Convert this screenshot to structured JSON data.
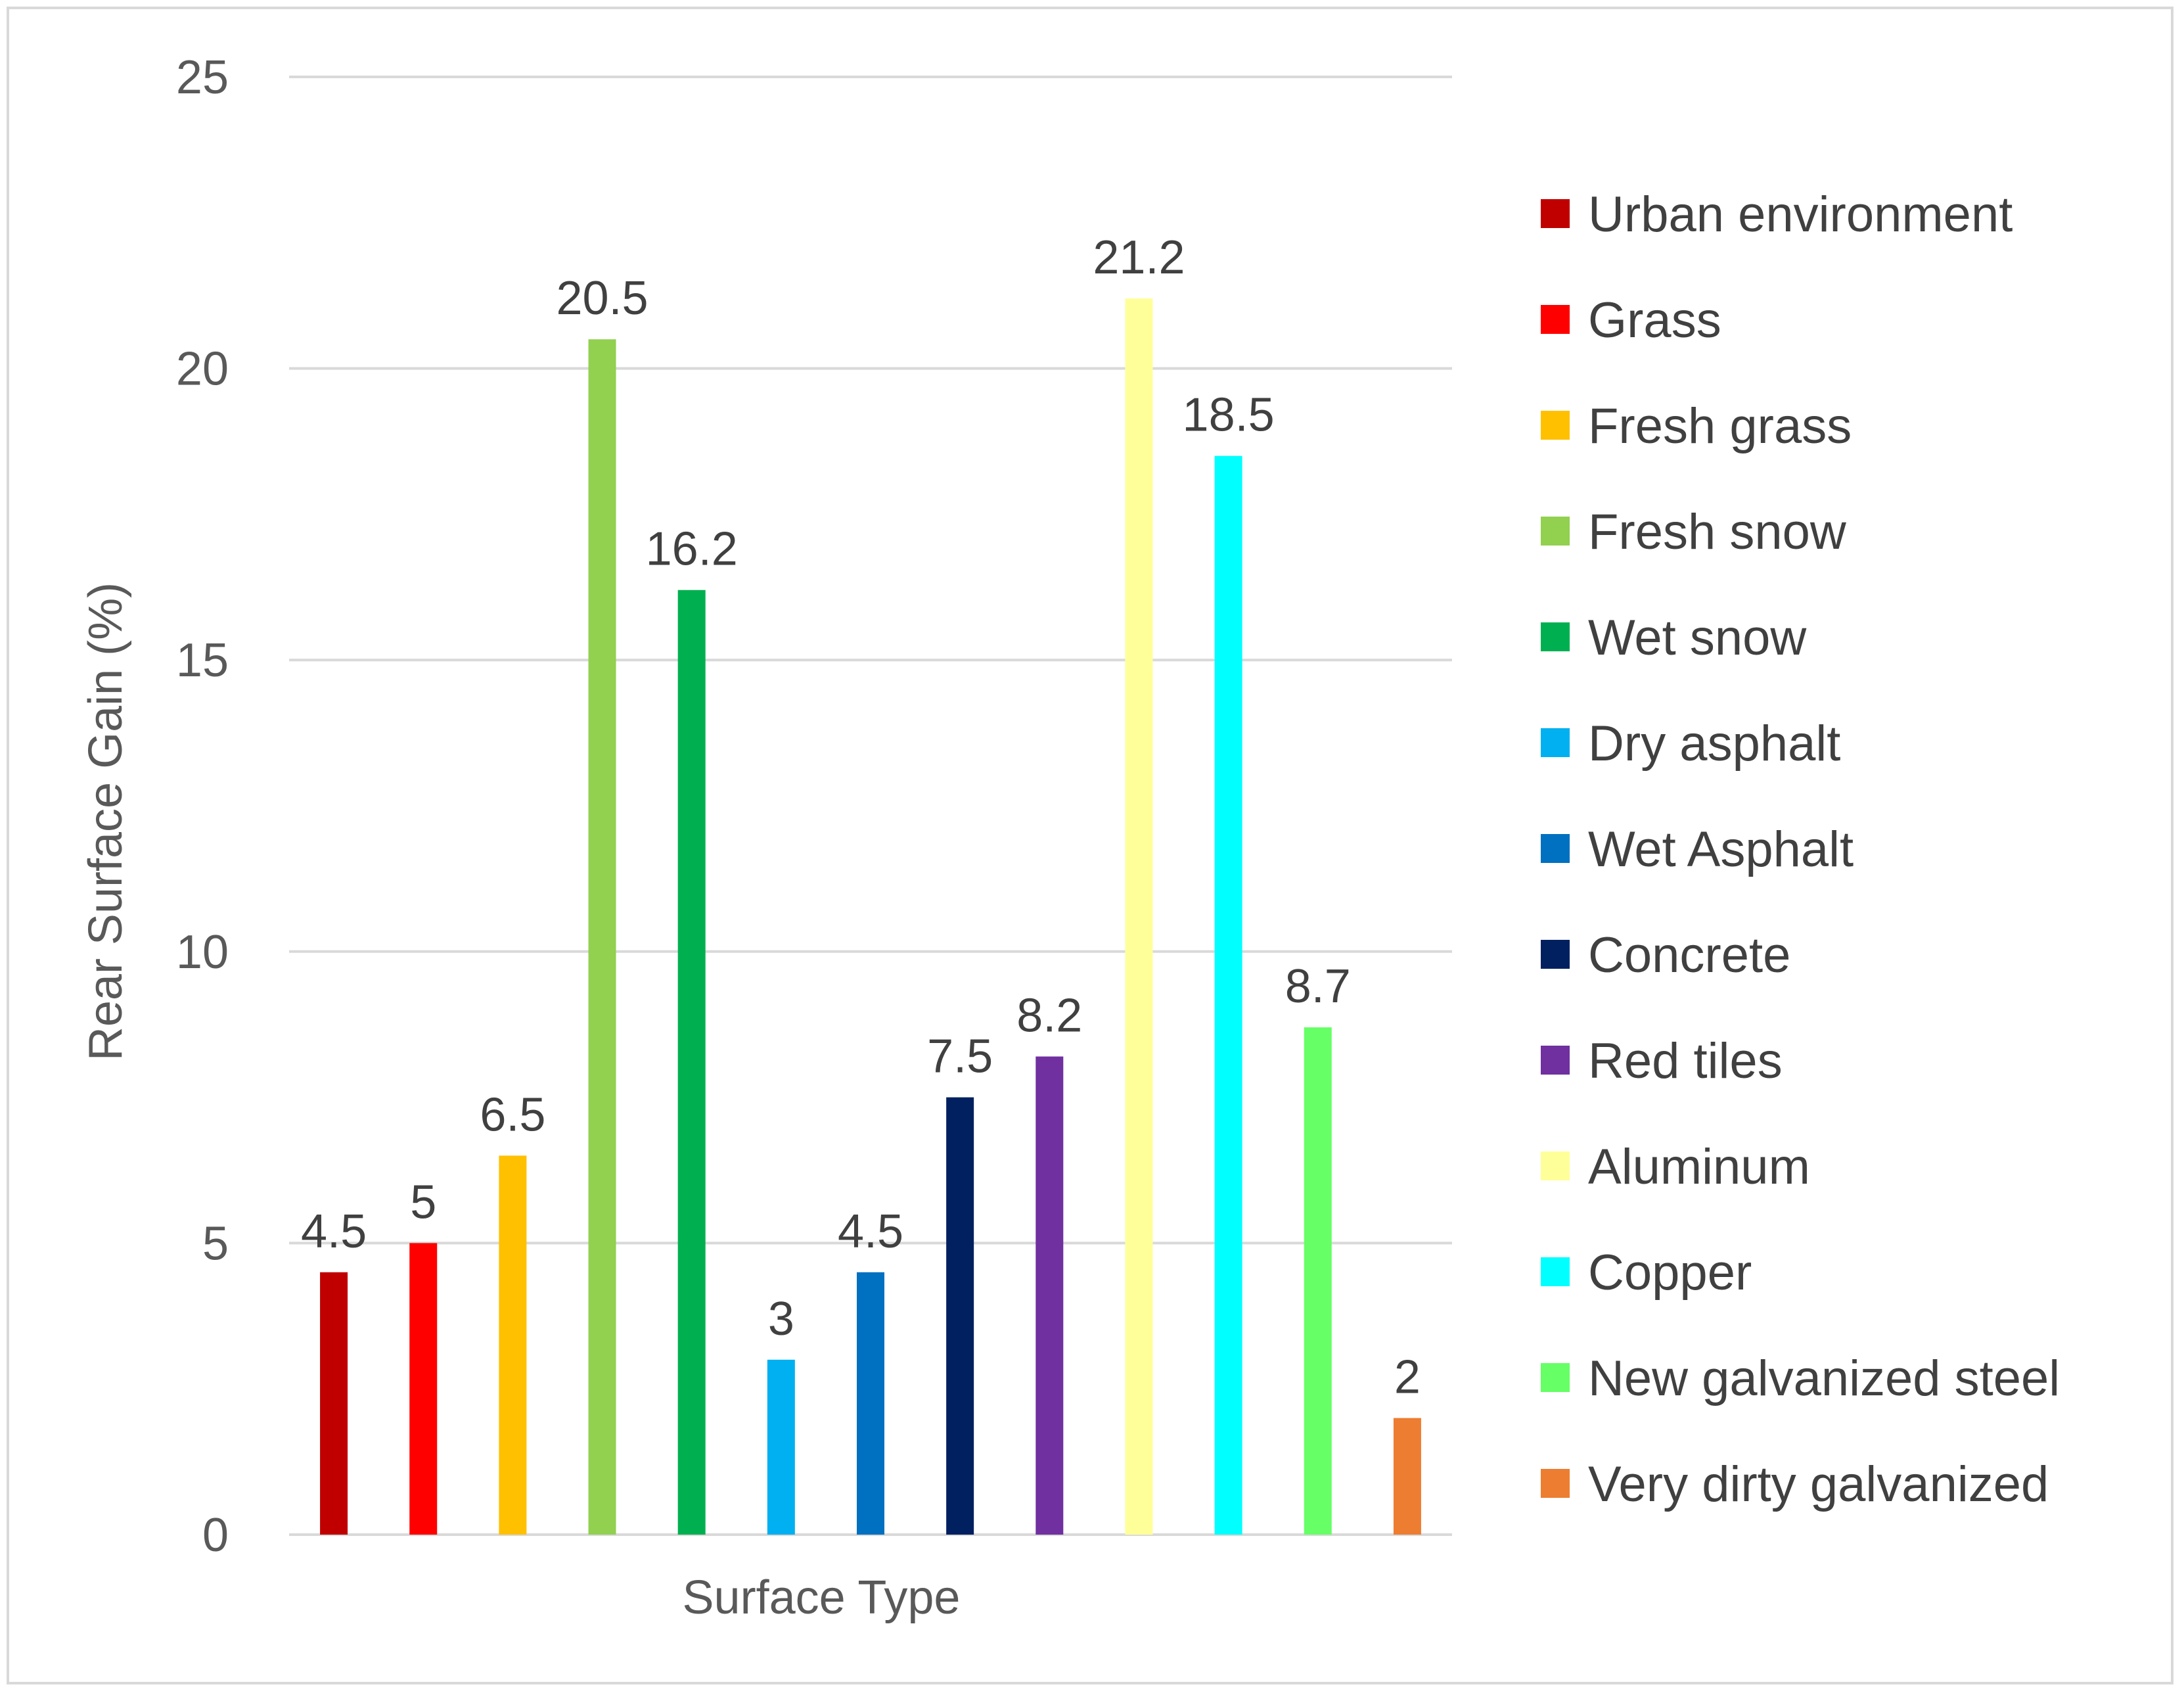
{
  "chart_data": {
    "type": "bar",
    "title": "",
    "xlabel": "Surface Type",
    "ylabel": "Rear Surface Gain (%)",
    "ylim": [
      0,
      25
    ],
    "yticks": [
      0,
      5,
      10,
      15,
      20,
      25
    ],
    "grid": true,
    "legend_position": "right",
    "series": [
      {
        "name": "Urban environment",
        "value": 4.5,
        "label": "4.5",
        "color": "#C00000"
      },
      {
        "name": "Grass",
        "value": 5,
        "label": "5",
        "color": "#FF0000"
      },
      {
        "name": "Fresh grass",
        "value": 6.5,
        "label": "6.5",
        "color": "#FFC000"
      },
      {
        "name": "Fresh snow",
        "value": 20.5,
        "label": "20.5",
        "color": "#92D050"
      },
      {
        "name": "Wet snow",
        "value": 16.2,
        "label": "16.2",
        "color": "#00B050"
      },
      {
        "name": "Dry asphalt",
        "value": 3,
        "label": "3",
        "color": "#00B0F0"
      },
      {
        "name": "Wet Asphalt",
        "value": 4.5,
        "label": "4.5",
        "color": "#0070C0"
      },
      {
        "name": "Concrete",
        "value": 7.5,
        "label": "7.5",
        "color": "#002060"
      },
      {
        "name": "Red tiles",
        "value": 8.2,
        "label": "8.2",
        "color": "#7030A0"
      },
      {
        "name": "Aluminum",
        "value": 21.2,
        "label": "21.2",
        "color": "#FFFF99"
      },
      {
        "name": "Copper",
        "value": 18.5,
        "label": "18.5",
        "color": "#00FFFF"
      },
      {
        "name": "New galvanized steel",
        "value": 8.7,
        "label": "8.7",
        "color": "#66FF66"
      },
      {
        "name": "Very dirty galvanized",
        "value": 2,
        "label": "2",
        "color": "#ED7D31"
      }
    ]
  }
}
